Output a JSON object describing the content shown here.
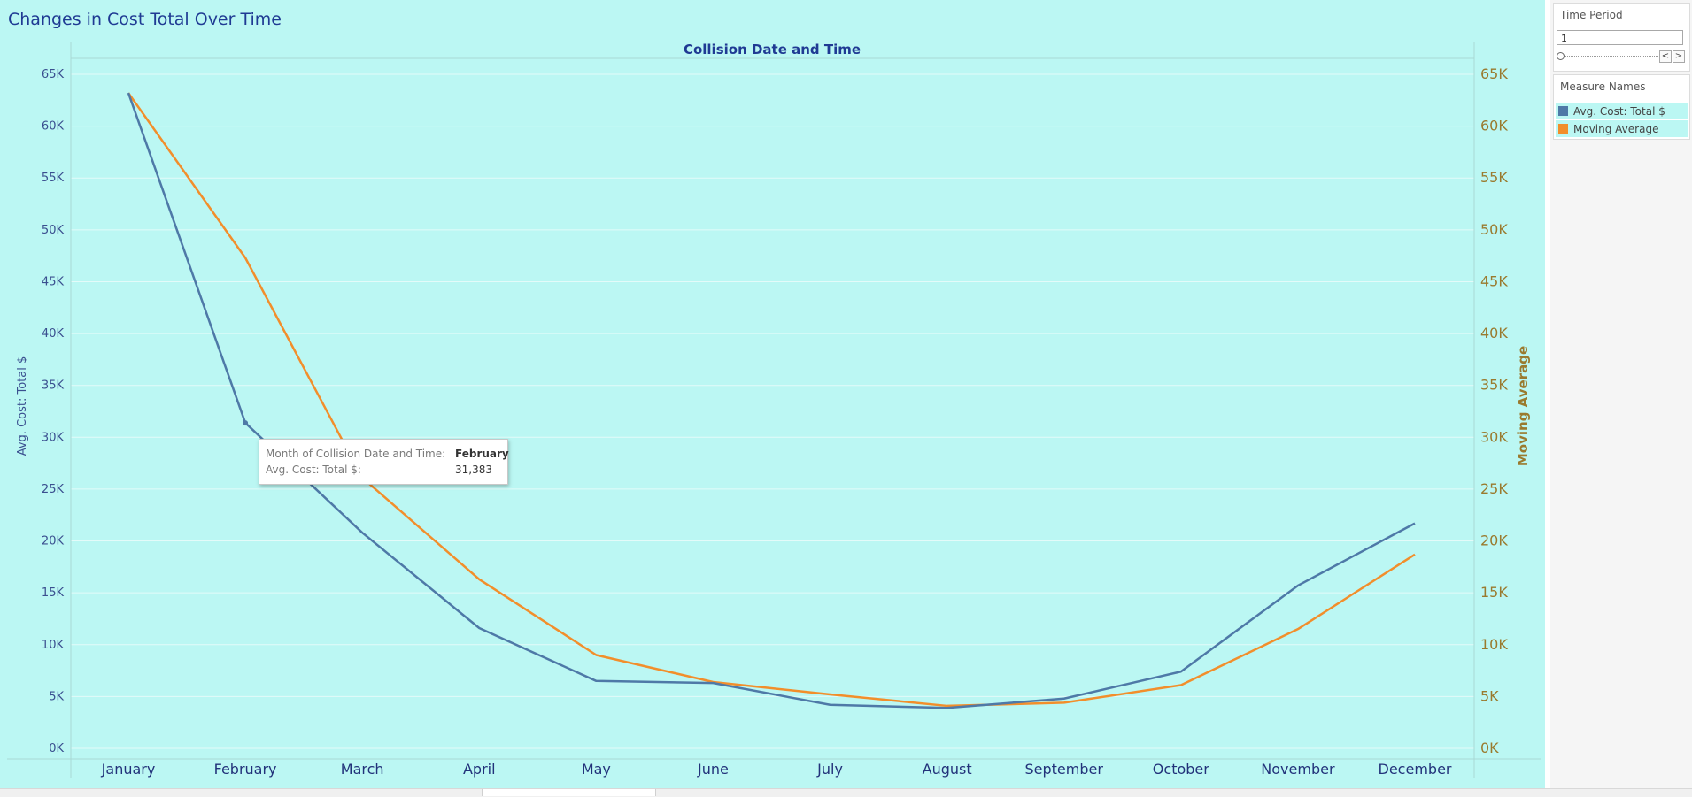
{
  "title": "Changes in Cost Total Over Time",
  "chart_data": {
    "type": "line",
    "top_axis_title": "Collision Date and Time",
    "ylabel_left": "Avg. Cost: Total $",
    "ylabel_right": "Moving Average",
    "categories": [
      "January",
      "February",
      "March",
      "April",
      "May",
      "June",
      "July",
      "August",
      "September",
      "October",
      "November",
      "December"
    ],
    "yticks": [
      0,
      5000,
      10000,
      15000,
      20000,
      25000,
      30000,
      35000,
      40000,
      45000,
      50000,
      55000,
      60000,
      65000
    ],
    "ytick_labels": [
      "0K",
      "5K",
      "10K",
      "15K",
      "20K",
      "25K",
      "30K",
      "35K",
      "40K",
      "45K",
      "50K",
      "55K",
      "60K",
      "65K"
    ],
    "ylim": [
      0,
      65000
    ],
    "grid": true,
    "series": [
      {
        "name": "Avg. Cost: Total $",
        "axis": "left",
        "color": "#4e79a7",
        "values": [
          63200,
          31383,
          20800,
          11600,
          6500,
          6300,
          4200,
          3900,
          4800,
          7400,
          15700,
          21700
        ]
      },
      {
        "name": "Moving Average",
        "axis": "right",
        "color": "#f28e2b",
        "values": [
          63200,
          47300,
          26100,
          16300,
          9000,
          6400,
          5200,
          4100,
          4400,
          6100,
          11500,
          18700
        ]
      }
    ],
    "tooltip": {
      "label1": "Month of Collision Date and Time:",
      "value1": "February",
      "label2": "Avg. Cost: Total $:",
      "value2": "31,383"
    }
  },
  "sidebar": {
    "time_period": {
      "title": "Time Period",
      "value": "1",
      "prev": "<",
      "next": ">"
    },
    "legend": {
      "title": "Measure Names",
      "items": [
        {
          "label": "Avg. Cost: Total $",
          "color": "#4e79a7"
        },
        {
          "label": "Moving Average",
          "color": "#f28e2b"
        }
      ]
    }
  }
}
